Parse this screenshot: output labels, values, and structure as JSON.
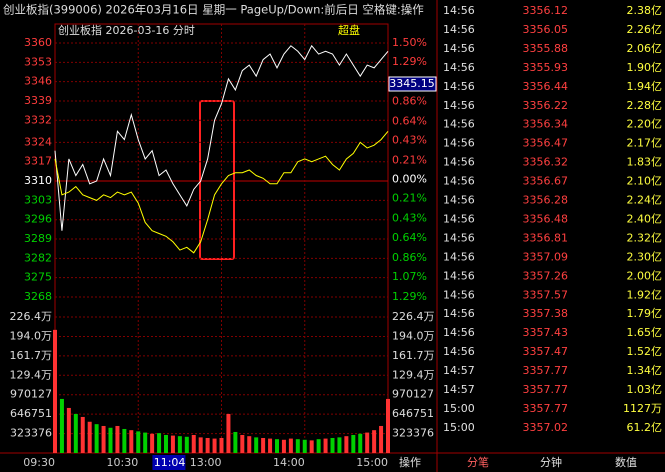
{
  "header": {
    "title": "创业板指(399006)  2026年03月16日  星期一  PageUp/Down:前后日  空格键:操作"
  },
  "chart_data": {
    "type": "line",
    "title": "创业板指  2026-03-16  分时",
    "badge": "超盘",
    "x": [
      "09:30",
      "09:35",
      "09:40",
      "09:45",
      "09:50",
      "09:55",
      "10:00",
      "10:05",
      "10:10",
      "10:15",
      "10:20",
      "10:25",
      "10:30",
      "10:35",
      "10:40",
      "10:45",
      "10:50",
      "10:55",
      "11:00",
      "11:05",
      "11:10",
      "11:15",
      "11:20",
      "11:25",
      "11:30",
      "13:05",
      "13:10",
      "13:15",
      "13:20",
      "13:25",
      "13:30",
      "13:35",
      "13:40",
      "13:45",
      "13:50",
      "13:55",
      "14:00",
      "14:05",
      "14:10",
      "14:15",
      "14:20",
      "14:25",
      "14:30",
      "14:35",
      "14:40",
      "14:45",
      "14:50",
      "14:55",
      "15:00"
    ],
    "series": [
      {
        "color": "#ffffff",
        "values": [
          3321,
          3292,
          3318,
          3312,
          3316,
          3309,
          3310,
          3318,
          3312,
          3328,
          3325,
          3334,
          3325,
          3318,
          3321,
          3312,
          3314,
          3309,
          3305,
          3301,
          3307,
          3310,
          3318,
          3332,
          3338,
          3347,
          3343,
          3350,
          3352,
          3348,
          3354,
          3356,
          3351,
          3356,
          3359,
          3357,
          3354,
          3359,
          3356,
          3357,
          3356,
          3352,
          3356,
          3352,
          3348,
          3352,
          3351,
          3354,
          3357
        ]
      },
      {
        "color": "#ffff00",
        "values": [
          3318,
          3305,
          3306,
          3308,
          3305,
          3304,
          3303,
          3305,
          3304,
          3306,
          3305,
          3306,
          3302,
          3295,
          3292,
          3291,
          3290,
          3288,
          3285,
          3286,
          3284,
          3288,
          3296,
          3305,
          3309,
          3312,
          3313,
          3313,
          3314,
          3312,
          3311,
          3309,
          3309,
          3313,
          3313,
          3317,
          3318,
          3317,
          3318,
          3319,
          3316,
          3314,
          3318,
          3320,
          3324,
          3322,
          3323,
          3325,
          3328
        ]
      }
    ],
    "volume": [
      2050000,
      900000,
      750000,
      650000,
      600000,
      520000,
      480000,
      450000,
      420000,
      450000,
      400000,
      380000,
      360000,
      340000,
      320000,
      330000,
      300000,
      290000,
      280000,
      270000,
      300000,
      260000,
      250000,
      240000,
      250000,
      650000,
      350000,
      300000,
      280000,
      260000,
      250000,
      240000,
      230000,
      220000,
      240000,
      230000,
      220000,
      210000,
      230000,
      240000,
      250000,
      260000,
      280000,
      300000,
      320000,
      340000,
      380000,
      450000,
      900000
    ],
    "volume_colors": [
      "#ff3232",
      "#00d000",
      "#ff3232",
      "#00d000",
      "#ff3232",
      "#ff3232",
      "#00d000",
      "#ff3232",
      "#00d000",
      "#ff3232",
      "#00d000",
      "#ff3232",
      "#00d000",
      "#00d000",
      "#ff3232",
      "#00d000",
      "#00d000",
      "#ff3232",
      "#00d000",
      "#00d000",
      "#ff3232",
      "#ff3232",
      "#ff3232",
      "#ff3232",
      "#ff3232",
      "#ff3232",
      "#00d000",
      "#ff3232",
      "#ff3232",
      "#00d000",
      "#ff3232",
      "#ff3232",
      "#00d000",
      "#ff3232",
      "#ff3232",
      "#00d000",
      "#00d000",
      "#ff3232",
      "#00d000",
      "#ff3232",
      "#00d000",
      "#00d000",
      "#ff3232",
      "#00d000",
      "#00d000",
      "#ff3232",
      "#ff3232",
      "#ff3232",
      "#ff3232"
    ],
    "ylim": [
      3268,
      3360
    ],
    "yticks": [
      3360,
      3353,
      3346,
      3339,
      3332,
      3324,
      3317,
      3310,
      3303,
      3296,
      3289,
      3282,
      3275,
      3268
    ],
    "y2lim": [
      -1.29,
      1.5
    ],
    "y2ticks": [
      {
        "value": 1.5,
        "label": "1.50%"
      },
      {
        "value": 1.29,
        "label": "1.29%"
      },
      {
        "value": 1.07,
        "label": "1.07%"
      },
      {
        "value": 0.86,
        "label": "0.86%"
      },
      {
        "value": 0.64,
        "label": "0.64%"
      },
      {
        "value": 0.43,
        "label": "0.43%"
      },
      {
        "value": 0.21,
        "label": "0.21%"
      },
      {
        "value": 0,
        "label": "0.00%"
      },
      {
        "value": -0.21,
        "label": "0.21%"
      },
      {
        "value": -0.43,
        "label": "0.43%"
      },
      {
        "value": -0.64,
        "label": "0.64%"
      },
      {
        "value": -0.86,
        "label": "0.86%"
      },
      {
        "value": -1.07,
        "label": "1.07%"
      },
      {
        "value": -1.29,
        "label": "1.29%"
      }
    ],
    "volume_ylim": [
      0,
      2264000
    ],
    "volume_ticks": [
      {
        "value": 2264000,
        "label": "226.4万"
      },
      {
        "value": 1940000,
        "label": "194.0万"
      },
      {
        "value": 1617000,
        "label": "161.7万"
      },
      {
        "value": 1294000,
        "label": "129.4万"
      },
      970127,
      646751,
      323376
    ],
    "xticks": [
      "09:30",
      "10:30",
      "11:04",
      "13:00",
      "14:00",
      "15:00"
    ],
    "cursor_tick": "11:04",
    "price_tag": 3345.15,
    "grid": true
  },
  "trade_list": {
    "rows": [
      [
        "14:56",
        "3356.12",
        "2.38亿"
      ],
      [
        "14:56",
        "3356.05",
        "2.26亿"
      ],
      [
        "14:56",
        "3355.88",
        "2.06亿"
      ],
      [
        "14:56",
        "3355.93",
        "1.90亿"
      ],
      [
        "14:56",
        "3356.44",
        "1.94亿"
      ],
      [
        "14:56",
        "3356.22",
        "2.28亿"
      ],
      [
        "14:56",
        "3356.34",
        "2.20亿"
      ],
      [
        "14:56",
        "3356.47",
        "2.17亿"
      ],
      [
        "14:56",
        "3356.32",
        "1.83亿"
      ],
      [
        "14:56",
        "3356.67",
        "2.10亿"
      ],
      [
        "14:56",
        "3356.28",
        "2.24亿"
      ],
      [
        "14:56",
        "3356.48",
        "2.40亿"
      ],
      [
        "14:56",
        "3356.81",
        "2.32亿"
      ],
      [
        "14:56",
        "3357.09",
        "2.30亿"
      ],
      [
        "14:56",
        "3357.26",
        "2.00亿"
      ],
      [
        "14:56",
        "3357.57",
        "1.92亿"
      ],
      [
        "14:56",
        "3357.38",
        "1.79亿"
      ],
      [
        "14:56",
        "3357.43",
        "1.65亿"
      ],
      [
        "14:56",
        "3357.47",
        "1.52亿"
      ],
      [
        "14:57",
        "3357.77",
        "1.34亿"
      ],
      [
        "14:57",
        "3357.77",
        "1.03亿"
      ],
      [
        "15:00",
        "3357.77",
        "1127万"
      ],
      [
        "15:00",
        "3357.02",
        "61.2亿"
      ]
    ]
  },
  "tabs": [
    "操作",
    "分笔",
    "分钟",
    "数值"
  ]
}
